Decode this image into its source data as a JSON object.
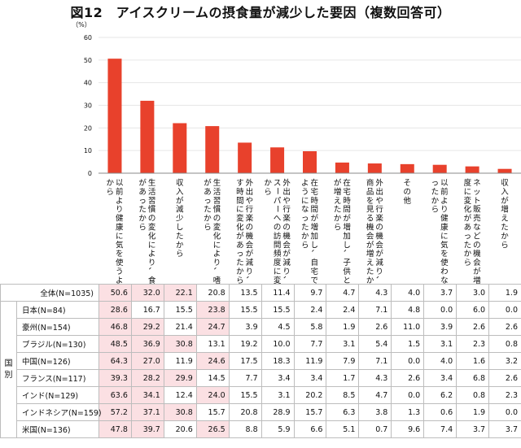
{
  "page_title": "図12　アイスクリームの摂食量が減少した要因（複数回答可）",
  "chart_data": {
    "type": "bar",
    "ylabel": "（%）",
    "ylim": [
      0,
      60
    ],
    "yticks": [
      0,
      10,
      20,
      30,
      40,
      50,
      60
    ],
    "bar_color": "#e8412c",
    "categories": [
      "以前より健康に気を使うようになったから",
      "生活習慣の変化により、食生活に変化があったから",
      "収入が減少したから",
      "生活習慣の変化により、嗜好性に変化があったから",
      "外出や行楽の機会が減り、自宅で過ごす時間に変化があったから",
      "外出や行楽の機会が減り、コンビニやスーパーへの訪問頻度に変化があったから",
      "在宅時間が増加し、自宅で仕事をするようになったから",
      "在宅時間が増加し、子供と過ごす時間が増えたから",
      "外出や行楽の機会が減り、口コミや新商品を見る機会が増えたから",
      "その他",
      "以前より健康に気を使わないようになったから",
      "ネット販売などの機会が増え、購入頻度に変化があったから",
      "収入が増えたから"
    ],
    "values": [
      50.6,
      32.0,
      22.1,
      20.8,
      13.5,
      11.4,
      9.7,
      4.7,
      4.3,
      4.0,
      3.7,
      3.0,
      1.9
    ]
  },
  "table": {
    "group_label": "国別",
    "total_row": {
      "label": "全体(N=1035)",
      "values": [
        "50.6",
        "32.0",
        "22.1",
        "20.8",
        "13.5",
        "11.4",
        "9.7",
        "4.7",
        "4.3",
        "4.0",
        "3.7",
        "3.0",
        "1.9"
      ],
      "highlight": [
        0,
        1,
        2
      ]
    },
    "rows": [
      {
        "label": "日本(N=84)",
        "values": [
          "28.6",
          "16.7",
          "15.5",
          "23.8",
          "15.5",
          "15.5",
          "2.4",
          "2.4",
          "7.1",
          "4.8",
          "0.0",
          "6.0",
          "0.0"
        ],
        "highlight": [
          0,
          3
        ]
      },
      {
        "label": "豪州(N=154)",
        "values": [
          "46.8",
          "29.2",
          "21.4",
          "24.7",
          "3.9",
          "4.5",
          "5.8",
          "1.9",
          "2.6",
          "11.0",
          "3.9",
          "2.6",
          "2.6"
        ],
        "highlight": [
          0,
          1,
          3
        ]
      },
      {
        "label": "ブラジル(N=130)",
        "values": [
          "48.5",
          "36.9",
          "30.8",
          "13.1",
          "19.2",
          "10.0",
          "7.7",
          "3.1",
          "5.4",
          "1.5",
          "3.1",
          "2.3",
          "0.8"
        ],
        "highlight": [
          0,
          1,
          2
        ]
      },
      {
        "label": "中国(N=126)",
        "values": [
          "64.3",
          "27.0",
          "11.9",
          "24.6",
          "17.5",
          "18.3",
          "11.9",
          "7.9",
          "7.1",
          "0.0",
          "4.0",
          "1.6",
          "3.2"
        ],
        "highlight": [
          0,
          1,
          3
        ]
      },
      {
        "label": "フランス(N=117)",
        "values": [
          "39.3",
          "28.2",
          "29.9",
          "14.5",
          "7.7",
          "3.4",
          "3.4",
          "1.7",
          "4.3",
          "2.6",
          "3.4",
          "6.8",
          "2.6"
        ],
        "highlight": [
          0,
          1,
          2
        ]
      },
      {
        "label": "インド(N=129)",
        "values": [
          "63.6",
          "34.1",
          "12.4",
          "24.0",
          "15.5",
          "3.1",
          "20.2",
          "8.5",
          "4.7",
          "0.0",
          "6.2",
          "0.8",
          "2.3"
        ],
        "highlight": [
          0,
          1,
          3
        ]
      },
      {
        "label": "インドネシア(N=159)",
        "values": [
          "57.2",
          "37.1",
          "30.8",
          "15.7",
          "20.8",
          "28.9",
          "15.7",
          "6.3",
          "3.8",
          "1.3",
          "0.6",
          "1.9",
          "0.0"
        ],
        "highlight": [
          0,
          1,
          2
        ]
      },
      {
        "label": "米国(N=136)",
        "values": [
          "47.8",
          "39.7",
          "20.6",
          "26.5",
          "8.8",
          "5.9",
          "6.6",
          "5.1",
          "0.7",
          "9.6",
          "7.4",
          "3.7",
          "3.7"
        ],
        "highlight": [
          0,
          1,
          3
        ]
      }
    ]
  }
}
